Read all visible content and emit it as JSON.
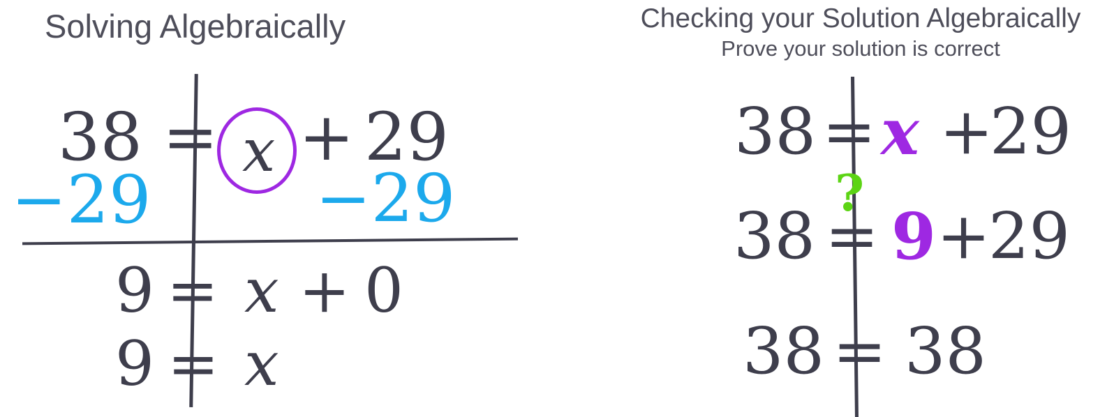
{
  "colors": {
    "ink": "#3e3e4c",
    "title": "#4e4e5a",
    "cyan": "#1ca9ec",
    "purple": "#9e28e2",
    "green": "#5cd414"
  },
  "left_panel": {
    "title": "Solving Algebraically",
    "row1": {
      "lhs": "38",
      "equals": "=",
      "variable": "x",
      "plus": "+",
      "addend": "29"
    },
    "row2": {
      "left_term": "−29",
      "right_term": "−29"
    },
    "row3": {
      "lhs": "9",
      "equals": "=",
      "variable": "x",
      "plus": "+",
      "addend": "0"
    },
    "row4": {
      "lhs": "9",
      "equals": "=",
      "variable": "x"
    }
  },
  "right_panel": {
    "title": "Checking your Solution Algebraically",
    "subtitle": "Prove your solution is correct",
    "row1": {
      "lhs": "38",
      "equals": "=",
      "variable": "x",
      "plus": "+",
      "addend": "29"
    },
    "row2": {
      "lhs": "38",
      "equals": "=",
      "question_mark": "?",
      "substituted_value": "9",
      "plus": "+",
      "addend": "29"
    },
    "row3": {
      "lhs": "38",
      "equals": "=",
      "rhs": "38"
    }
  }
}
